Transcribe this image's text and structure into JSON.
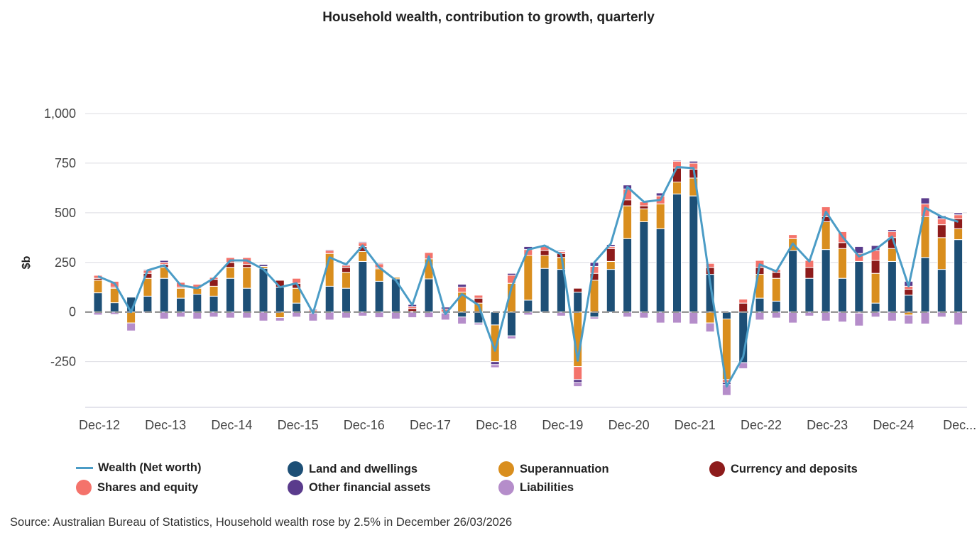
{
  "chart_data": {
    "type": "bar",
    "stacked": true,
    "title": "Household wealth, contribution to growth, quarterly",
    "ylabel": "$b",
    "xlabel": "",
    "ylim": [
      -480,
      1000
    ],
    "y_ticks": [
      -250,
      0,
      250,
      500,
      750,
      1000
    ],
    "y_tick_labels": [
      "-250",
      "0",
      "250",
      "500",
      "750",
      "1,000"
    ],
    "x_tick_labels": [
      "Dec-12",
      "Dec-13",
      "Dec-14",
      "Dec-15",
      "Dec-16",
      "Dec-17",
      "Dec-18",
      "Dec-19",
      "Dec-20",
      "Dec-21",
      "Dec-22",
      "Dec-23",
      "Dec-24",
      "Dec..."
    ],
    "grid": true,
    "legend_position": "bottom",
    "categories": [
      "Dec-12",
      "Mar-13",
      "Jun-13",
      "Sep-13",
      "Dec-13",
      "Mar-14",
      "Jun-14",
      "Sep-14",
      "Dec-14",
      "Mar-15",
      "Jun-15",
      "Sep-15",
      "Dec-15",
      "Mar-16",
      "Jun-16",
      "Sep-16",
      "Dec-16",
      "Mar-17",
      "Jun-17",
      "Sep-17",
      "Dec-17",
      "Mar-18",
      "Jun-18",
      "Sep-18",
      "Dec-18",
      "Mar-19",
      "Jun-19",
      "Sep-19",
      "Dec-19",
      "Mar-20",
      "Jun-20",
      "Sep-20",
      "Dec-20",
      "Mar-21",
      "Jun-21",
      "Sep-21",
      "Dec-21",
      "Mar-22",
      "Jun-22",
      "Sep-22",
      "Dec-22",
      "Mar-23",
      "Jun-23",
      "Sep-23",
      "Dec-23",
      "Mar-24",
      "Jun-24",
      "Sep-24",
      "Dec-24",
      "Mar-25",
      "Jun-25",
      "Sep-25",
      "Dec-25"
    ],
    "series": [
      {
        "name": "Land and dwellings",
        "type": "bar",
        "color": "#1d4f76",
        "values": [
          97,
          47,
          75,
          80,
          170,
          70,
          90,
          80,
          170,
          120,
          220,
          125,
          45,
          -5,
          130,
          120,
          255,
          155,
          167,
          3,
          167,
          -5,
          -25,
          -55,
          -65,
          -120,
          60,
          220,
          215,
          100,
          -25,
          215,
          370,
          455,
          420,
          595,
          585,
          190,
          -35,
          -255,
          70,
          55,
          310,
          170,
          315,
          170,
          255,
          45,
          255,
          85,
          275,
          215,
          365
        ]
      },
      {
        "name": "Superannuation",
        "type": "bar",
        "color": "#d98e1e",
        "values": [
          63,
          73,
          -55,
          90,
          55,
          50,
          30,
          50,
          55,
          105,
          10,
          -28,
          75,
          0,
          165,
          80,
          50,
          63,
          8,
          0,
          101,
          0,
          100,
          45,
          -185,
          145,
          225,
          65,
          60,
          -275,
          160,
          40,
          165,
          65,
          125,
          60,
          90,
          -55,
          -305,
          0,
          120,
          115,
          60,
          0,
          140,
          150,
          0,
          150,
          65,
          -15,
          205,
          160,
          55
        ]
      },
      {
        "name": "Currency and deposits",
        "type": "bar",
        "color": "#8d1b1b",
        "values": [
          10,
          5,
          0,
          25,
          15,
          5,
          5,
          35,
          25,
          15,
          0,
          35,
          25,
          0,
          0,
          25,
          25,
          5,
          0,
          15,
          0,
          0,
          0,
          25,
          0,
          0,
          0,
          25,
          20,
          20,
          35,
          65,
          30,
          15,
          0,
          70,
          45,
          35,
          0,
          45,
          35,
          30,
          0,
          55,
          25,
          30,
          -5,
          65,
          55,
          30,
          0,
          65,
          50
        ]
      },
      {
        "name": "Shares and equity",
        "type": "bar",
        "color": "#f4736b",
        "values": [
          15,
          30,
          0,
          15,
          10,
          25,
          15,
          10,
          25,
          35,
          0,
          0,
          25,
          10,
          15,
          10,
          20,
          20,
          0,
          10,
          32,
          15,
          25,
          15,
          0,
          40,
          30,
          20,
          10,
          -65,
          35,
          10,
          55,
          20,
          40,
          35,
          30,
          20,
          -15,
          20,
          35,
          15,
          20,
          35,
          50,
          55,
          40,
          50,
          30,
          15,
          65,
          30,
          20
        ]
      },
      {
        "name": "Other financial assets",
        "type": "bar",
        "color": "#5a3b8c",
        "values": [
          3,
          3,
          0,
          5,
          10,
          3,
          3,
          3,
          3,
          3,
          10,
          0,
          0,
          5,
          5,
          5,
          5,
          5,
          0,
          10,
          0,
          10,
          15,
          0,
          -15,
          10,
          15,
          5,
          5,
          -15,
          20,
          10,
          20,
          0,
          15,
          5,
          10,
          0,
          -10,
          0,
          0,
          0,
          0,
          0,
          0,
          0,
          35,
          25,
          10,
          25,
          30,
          15,
          10
        ]
      },
      {
        "name": "Liabilities",
        "type": "bar",
        "color": "#b58dca",
        "values": [
          -15,
          -12,
          -40,
          -5,
          -35,
          -25,
          -35,
          -25,
          -30,
          -30,
          -45,
          -17,
          -25,
          -40,
          -40,
          -30,
          -20,
          -28,
          -35,
          -28,
          -28,
          -35,
          -35,
          -10,
          -15,
          -15,
          -15,
          0,
          -20,
          -20,
          -10,
          0,
          -25,
          -30,
          -55,
          -55,
          -60,
          -45,
          -55,
          -30,
          -40,
          -30,
          -55,
          -20,
          -45,
          -50,
          -65,
          -25,
          -45,
          -45,
          -60,
          -25,
          -65
        ]
      },
      {
        "name": "Wealth (Net worth)",
        "type": "line",
        "color": "#4b9cc6",
        "values": [
          180,
          145,
          0,
          210,
          235,
          135,
          120,
          170,
          260,
          260,
          215,
          125,
          145,
          -5,
          275,
          240,
          335,
          225,
          160,
          35,
          280,
          -10,
          90,
          35,
          -195,
          125,
          315,
          335,
          290,
          -245,
          250,
          345,
          630,
          555,
          565,
          730,
          725,
          150,
          -375,
          -225,
          240,
          205,
          345,
          255,
          505,
          380,
          280,
          315,
          380,
          130,
          525,
          480,
          455
        ]
      }
    ]
  },
  "source": "Source: Australian Bureau of Statistics, Household wealth rose by 2.5% in December 26/03/2026",
  "legend": [
    {
      "label": "Wealth (Net worth)",
      "color": "#4b9cc6",
      "shape": "line"
    },
    {
      "label": "Land and dwellings",
      "color": "#1d4f76",
      "shape": "circle"
    },
    {
      "label": "Superannuation",
      "color": "#d98e1e",
      "shape": "circle"
    },
    {
      "label": "Currency and deposits",
      "color": "#8d1b1b",
      "shape": "circle"
    },
    {
      "label": "Shares and equity",
      "color": "#f4736b",
      "shape": "circle"
    },
    {
      "label": "Other financial assets",
      "color": "#5a3b8c",
      "shape": "circle"
    },
    {
      "label": "Liabilities",
      "color": "#b58dca",
      "shape": "circle"
    }
  ]
}
